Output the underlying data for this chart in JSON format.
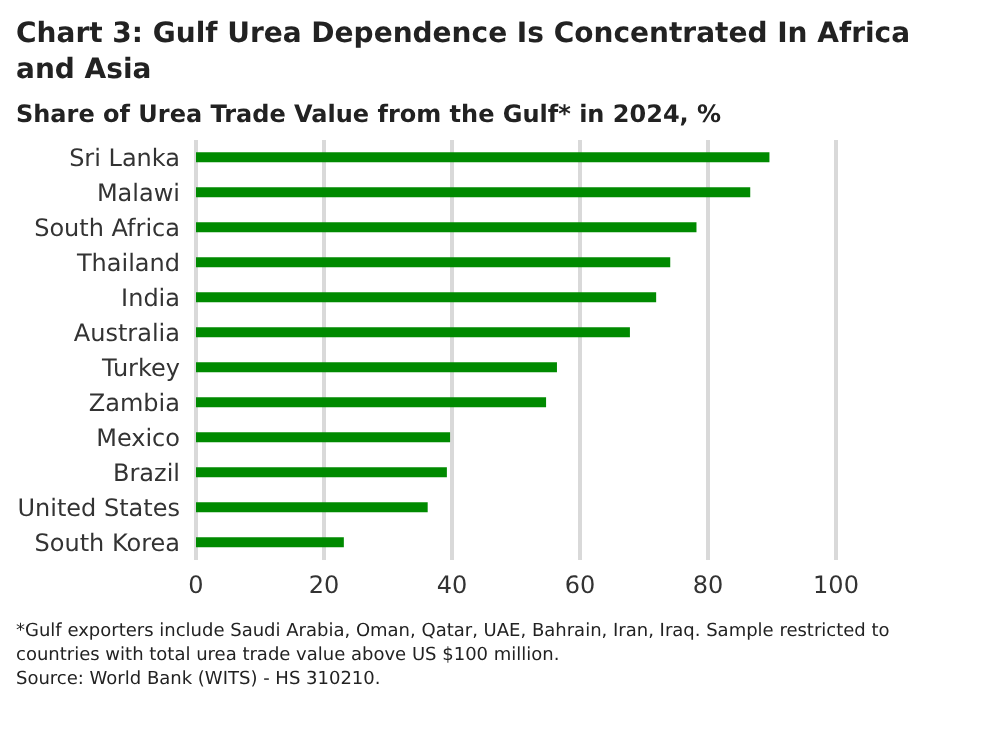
{
  "chart_data": {
    "type": "bar",
    "orientation": "horizontal",
    "title": "Chart 3: Gulf Urea Dependence Is Concentrated In Africa and Asia",
    "subtitle": "Share of Urea Trade Value from the Gulf* in 2024, %",
    "categories": [
      "Sri Lanka",
      "Malawi",
      "South Africa",
      "Thailand",
      "India",
      "Australia",
      "Turkey",
      "Zambia",
      "Mexico",
      "Brazil",
      "United States",
      "South Korea"
    ],
    "values": [
      89.6,
      86.6,
      78.2,
      74.1,
      71.9,
      67.8,
      56.4,
      54.7,
      39.7,
      39.2,
      36.2,
      23.1
    ],
    "color": "#008a00",
    "xlim": [
      0,
      100
    ],
    "xticks": [
      0,
      20,
      40,
      60,
      80,
      100
    ],
    "grid": "x",
    "annotations": [
      "*Gulf exporters include Saudi Arabia, Oman, Qatar, UAE, Bahrain, Iran, Iraq. Sample restricted to countries with total urea trade value above US $100 million.",
      "Source: World Bank (WITS) - HS 310210."
    ]
  }
}
